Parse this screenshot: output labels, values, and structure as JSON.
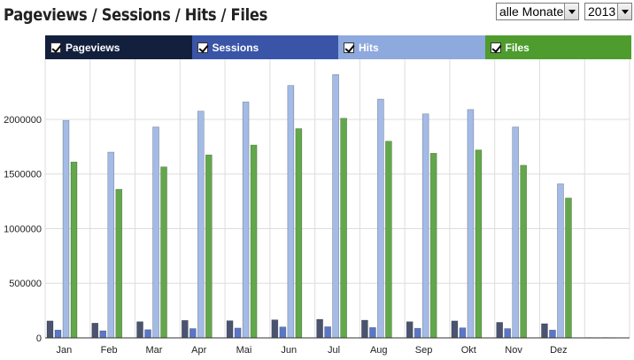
{
  "header": {
    "title": "Pageviews / Sessions / Hits / Files",
    "month_select": "alle Monate",
    "year_select": "2013"
  },
  "colors": {
    "Pageviews": "#4a5470",
    "Sessions": "#5a76c8",
    "Hits": "#a3bbe6",
    "Files": "#62a84a",
    "legend_Pageviews": "#13203d",
    "legend_Sessions": "#3a55a8",
    "legend_Hits": "#8ea9de",
    "legend_Files": "#4e9c2e",
    "grid": "#dddddd",
    "axis": "#333333"
  },
  "chart_data": {
    "type": "bar",
    "title": "Pageviews / Sessions / Hits / Files",
    "categories": [
      "Jan",
      "Feb",
      "Mar",
      "Apr",
      "Mai",
      "Jun",
      "Jul",
      "Aug",
      "Sep",
      "Okt",
      "Nov",
      "Dez",
      ""
    ],
    "series": [
      {
        "name": "Pageviews",
        "values": [
          155000,
          135000,
          148000,
          160000,
          157000,
          165000,
          170000,
          162000,
          148000,
          155000,
          142000,
          130000,
          3000
        ]
      },
      {
        "name": "Sessions",
        "values": [
          72000,
          65000,
          75000,
          85000,
          90000,
          100000,
          102000,
          95000,
          88000,
          92000,
          85000,
          72000,
          2000
        ]
      },
      {
        "name": "Hits",
        "values": [
          1990000,
          1700000,
          1930000,
          2075000,
          2160000,
          2310000,
          2410000,
          2185000,
          2050000,
          2090000,
          1930000,
          1410000,
          3000
        ]
      },
      {
        "name": "Files",
        "values": [
          1610000,
          1360000,
          1565000,
          1675000,
          1765000,
          1915000,
          2010000,
          1800000,
          1690000,
          1720000,
          1580000,
          1280000,
          2000
        ]
      }
    ],
    "ylim": [
      0,
      2550000
    ],
    "yticks": [
      0,
      500000,
      1000000,
      1500000,
      2000000
    ],
    "ytick_labels": [
      "0",
      "500000",
      "1000000",
      "1500000",
      "2000000"
    ],
    "xlabel": "",
    "ylabel": "",
    "grid": true,
    "legend": "top"
  }
}
